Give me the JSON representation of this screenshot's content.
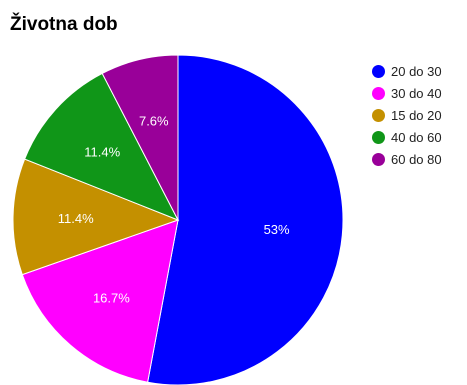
{
  "chart_data": {
    "type": "pie",
    "title": "Životna dob",
    "slices": [
      {
        "label": "20 do 30",
        "value": 53,
        "display": "53%",
        "color": "#0000ff"
      },
      {
        "label": "30 do 40",
        "value": 16.7,
        "display": "16.7%",
        "color": "#ff00ff"
      },
      {
        "label": "15 do 20",
        "value": 11.4,
        "display": "11.4%",
        "color": "#c49000"
      },
      {
        "label": "40 do 60",
        "value": 11.4,
        "display": "11.4%",
        "color": "#109618"
      },
      {
        "label": "60 do 80",
        "value": 7.6,
        "display": "7.6%",
        "color": "#990099"
      }
    ],
    "legend_position": "right"
  }
}
